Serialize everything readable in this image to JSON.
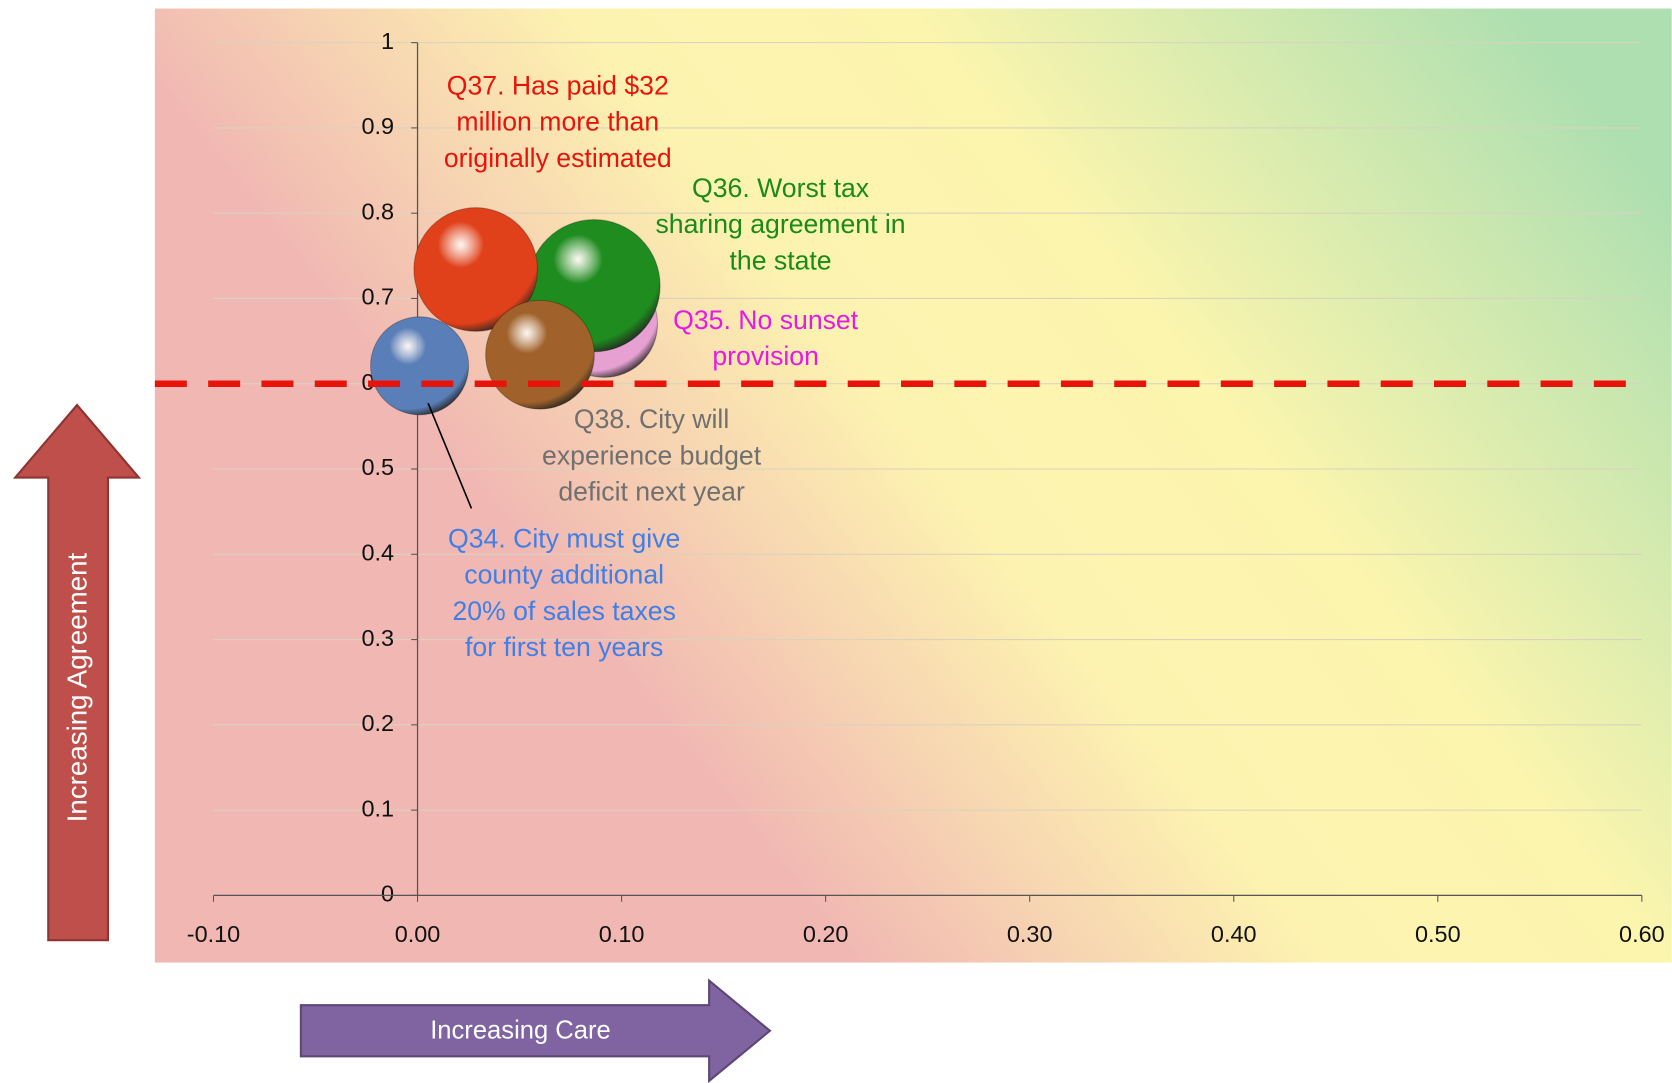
{
  "chart_data": {
    "type": "bubble",
    "x_label": "Increasing Care",
    "y_label": "Increasing Agreement",
    "xlim": [
      -0.1,
      0.6
    ],
    "xticks": [
      {
        "value": -0.1,
        "label": "-0.10"
      },
      {
        "value": 0,
        "label": "0.00"
      },
      {
        "value": 0.1,
        "label": "0.10"
      },
      {
        "value": 0.2,
        "label": "0.20"
      },
      {
        "value": 0.3,
        "label": "0.30"
      },
      {
        "value": 0.4,
        "label": "0.40"
      },
      {
        "value": 0.5,
        "label": "0.50"
      },
      {
        "value": 0.6,
        "label": "0.60"
      }
    ],
    "ylim": [
      0,
      1
    ],
    "yticks": [
      0,
      0.1,
      0.2,
      0.3,
      0.4,
      0.5,
      0.6,
      0.7,
      0.8,
      0.9,
      1
    ],
    "grid": true,
    "reference_line": 0.6,
    "reference_color": "#e8140c",
    "series": [
      {
        "label": [
          "Q35. No sunset",
          "provision"
        ],
        "color": "#e6a0d2",
        "label_color": "#e619e6",
        "x": 0.0915,
        "y": 0.67,
        "size": 50
      },
      {
        "label": [
          "Q36. Worst tax",
          "sharing agreement in",
          "the state"
        ],
        "color": "#1e8c1e",
        "label_color": "#1a8a1a",
        "x": 0.0865,
        "y": 0.715,
        "size": 62
      },
      {
        "label": [
          "Q37. Has paid $32",
          "million more than",
          "originally estimated"
        ],
        "color": "#e0401a",
        "label_color": "#e8140c",
        "x": 0.0285,
        "y": 0.734,
        "size": 58
      },
      {
        "label": [
          "Q38. City will",
          "experience budget",
          "deficit next year"
        ],
        "color": "#a0622a",
        "label_color": "#707070",
        "x": 0.06,
        "y": 0.634,
        "size": 51
      },
      {
        "label": [
          "Q34. City must give",
          "county additional",
          "20% of sales taxes",
          "for first ten years"
        ],
        "color": "#5a7fb8",
        "label_color": "#3f7fe6",
        "x": 0.001,
        "y": 0.621,
        "size": 46
      }
    ]
  }
}
